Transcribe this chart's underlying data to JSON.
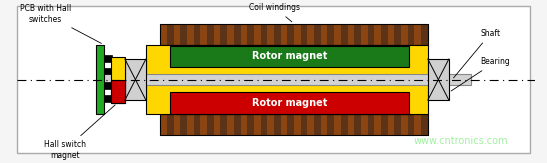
{
  "bg_color": "#f0f0f0",
  "border_color": "#aaaaaa",
  "colors": {
    "brown": "#8B4513",
    "dark_brown": "#5C3317",
    "green": "#228B22",
    "bright_green": "#32CD32",
    "yellow": "#FFD700",
    "red": "#CC0000",
    "gray": "#C0C0C0",
    "light_gray": "#D3D3D3",
    "dark_gray": "#808080",
    "black": "#000000",
    "white": "#FFFFFF",
    "watermark": "#90EE90"
  },
  "labels": {
    "pcb": "PCB with Hall\nswitches",
    "coil": "Coil windings",
    "rotor_top": "Rotor magnet",
    "rotor_bot": "Rotor magnet",
    "hall_magnet": "Hall switch\nmagnet",
    "shaft": "Shaft",
    "bearing": "Bearing",
    "watermark": "www.cntronics.com"
  }
}
